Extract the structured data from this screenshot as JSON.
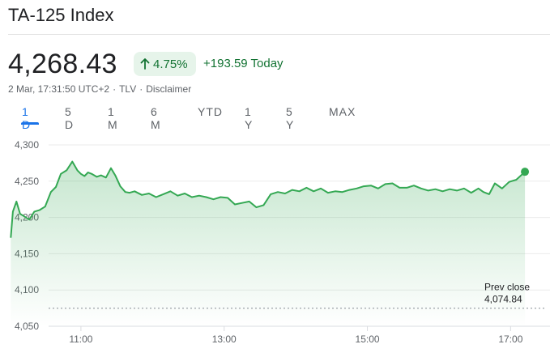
{
  "header": {
    "title": "TA-125 Index",
    "price": "4,268.43",
    "change_percent": "4.75%",
    "change_today": "+193.59 Today",
    "timestamp": "2 Mar, 17:31:50 UTC+2",
    "exchange": "TLV",
    "disclaimer": "Disclaimer"
  },
  "tabs": [
    {
      "label": "1 D",
      "active": true
    },
    {
      "label": "5 D",
      "active": false
    },
    {
      "label": "1 M",
      "active": false
    },
    {
      "label": "6 M",
      "active": false
    },
    {
      "label": "YTD",
      "active": false
    },
    {
      "label": "1 Y",
      "active": false
    },
    {
      "label": "5 Y",
      "active": false
    },
    {
      "label": "MAX",
      "active": false
    }
  ],
  "colors": {
    "positive": "#137333",
    "positive_bg": "#e6f4ea",
    "line": "#34a853",
    "active_tab": "#1a73e8"
  },
  "chart_data": {
    "type": "line",
    "ylim": [
      4050,
      4300
    ],
    "y_ticks": [
      "4,300",
      "4,250",
      "4,200",
      "4,150",
      "4,100",
      "4,050"
    ],
    "y_tick_values": [
      4300,
      4250,
      4200,
      4150,
      4100,
      4050
    ],
    "x_ticks": [
      "11:00",
      "13:00",
      "15:00",
      "17:00"
    ],
    "x_tick_values": [
      11,
      13,
      15,
      17
    ],
    "xlim": [
      9.87,
      17.55
    ],
    "prev_close_label": "Prev close",
    "prev_close_value_text": "4,074.84",
    "prev_close": 4074.84,
    "series": [
      {
        "x": [
          10.02,
          10.05,
          10.1,
          10.15,
          10.2,
          10.28,
          10.35,
          10.42,
          10.5,
          10.58,
          10.65,
          10.72,
          10.8,
          10.88,
          10.95,
          11.0,
          11.05,
          11.1,
          11.15,
          11.22,
          11.28,
          11.35,
          11.42,
          11.48,
          11.55,
          11.62,
          11.68,
          11.75,
          11.85,
          11.95,
          12.05,
          12.15,
          12.25,
          12.35,
          12.45,
          12.55,
          12.65,
          12.75,
          12.85,
          12.95,
          13.05,
          13.15,
          13.25,
          13.35,
          13.45,
          13.55,
          13.65,
          13.75,
          13.85,
          13.95,
          14.05,
          14.15,
          14.25,
          14.35,
          14.45,
          14.55,
          14.65,
          14.75,
          14.85,
          14.95,
          15.05,
          15.15,
          15.25,
          15.35,
          15.45,
          15.55,
          15.65,
          15.75,
          15.85,
          15.95,
          16.05,
          16.15,
          16.25,
          16.35,
          16.45,
          16.55,
          16.62,
          16.7,
          16.78,
          16.88,
          16.98,
          17.08,
          17.2
        ],
        "y": [
          4172,
          4208,
          4222,
          4205,
          4202,
          4197,
          4208,
          4210,
          4215,
          4235,
          4242,
          4260,
          4265,
          4277,
          4265,
          4260,
          4257,
          4262,
          4260,
          4256,
          4258,
          4255,
          4268,
          4258,
          4243,
          4235,
          4234,
          4236,
          4231,
          4233,
          4228,
          4232,
          4236,
          4230,
          4233,
          4228,
          4230,
          4228,
          4225,
          4228,
          4227,
          4218,
          4220,
          4222,
          4214,
          4217,
          4232,
          4235,
          4233,
          4238,
          4236,
          4241,
          4236,
          4240,
          4234,
          4236,
          4235,
          4238,
          4240,
          4243,
          4244,
          4240,
          4246,
          4247,
          4241,
          4241,
          4244,
          4240,
          4237,
          4239,
          4236,
          4239,
          4237,
          4240,
          4234,
          4240,
          4235,
          4232,
          4247,
          4240,
          4249,
          4252,
          4263
        ]
      }
    ]
  }
}
